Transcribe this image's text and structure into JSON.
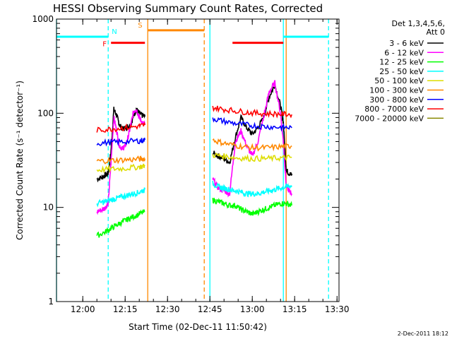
{
  "chart_data": {
    "type": "line",
    "title": "HESSI Observing Summary Count Rates, Corrected",
    "xlabel": "Start Time (02-Dec-11 11:50:42)",
    "ylabel": "Corrected Count Rate (s⁻¹ detector⁻¹)",
    "yscale": "log",
    "ylim": [
      1,
      1000
    ],
    "xlim": [
      "11:50:42",
      "13:30:42"
    ],
    "xticks": [
      "12:00",
      "12:15",
      "12:30",
      "12:45",
      "13:00",
      "13:15",
      "13:30"
    ],
    "yticks": [
      "1",
      "10",
      "100",
      "1000"
    ],
    "legend_header": [
      "Det 1,3,4,5,6,",
      "Att 0"
    ],
    "legend_position": "right",
    "timestamp": "2-Dec-2011 18:12",
    "series": [
      {
        "name": "3 - 6 keV",
        "color": "#000000",
        "segments": [
          {
            "t": [
              "12:05",
              "12:07",
              "12:08",
              "12:09",
              "12:10",
              "12:11",
              "12:12",
              "12:13",
              "12:14",
              "12:15",
              "12:16",
              "12:17",
              "12:18",
              "12:19",
              "12:20",
              "12:21",
              "12:22"
            ],
            "y": [
              20,
              21,
              22,
              23,
              40,
              110,
              95,
              75,
              68,
              70,
              72,
              75,
              95,
              110,
              100,
              95,
              92
            ]
          },
          {
            "t": [
              "12:46",
              "12:48",
              "12:50",
              "12:52",
              "12:54",
              "12:56",
              "12:58",
              "13:00",
              "13:02",
              "13:04",
              "13:06",
              "13:08",
              "13:10",
              "13:11",
              "13:12",
              "13:13",
              "13:14"
            ],
            "y": [
              38,
              35,
              33,
              30,
              55,
              90,
              70,
              60,
              70,
              90,
              150,
              200,
              120,
              80,
              25,
              23,
              22
            ]
          }
        ]
      },
      {
        "name": "6 - 12 keV",
        "color": "#ff00ff",
        "segments": [
          {
            "t": [
              "12:05",
              "12:07",
              "12:08",
              "12:09",
              "12:10",
              "12:11",
              "12:12",
              "12:13",
              "12:14",
              "12:15",
              "12:16",
              "12:17",
              "12:18",
              "12:19",
              "12:20",
              "12:21",
              "12:22"
            ],
            "y": [
              9,
              9.5,
              10,
              11,
              30,
              90,
              65,
              45,
              42,
              45,
              55,
              75,
              105,
              110,
              90,
              80,
              75
            ]
          },
          {
            "t": [
              "12:46",
              "12:48",
              "12:50",
              "12:52",
              "12:54",
              "12:56",
              "12:58",
              "13:00",
              "13:02",
              "13:04",
              "13:06",
              "13:08",
              "13:10",
              "13:11",
              "13:12",
              "13:13",
              "13:14"
            ],
            "y": [
              20,
              16,
              15,
              14,
              50,
              65,
              45,
              35,
              50,
              90,
              170,
              210,
              100,
              50,
              17,
              15,
              14
            ]
          }
        ]
      },
      {
        "name": "12 - 25 keV",
        "color": "#00ff00",
        "segments": [
          {
            "t": [
              "12:05",
              "12:08",
              "12:10",
              "12:12",
              "12:14",
              "12:16",
              "12:18",
              "12:20",
              "12:22"
            ],
            "y": [
              5,
              5.5,
              6,
              6.5,
              7,
              7.5,
              8,
              8.5,
              9
            ]
          },
          {
            "t": [
              "12:46",
              "12:48",
              "12:50",
              "12:52",
              "12:54",
              "12:56",
              "12:58",
              "13:00",
              "13:02",
              "13:04",
              "13:06",
              "13:08",
              "13:10",
              "13:12",
              "13:14"
            ],
            "y": [
              12,
              11.5,
              11,
              10.5,
              10.5,
              9.5,
              9,
              8.5,
              9,
              9.5,
              10,
              10.5,
              11,
              11,
              10.5
            ]
          }
        ]
      },
      {
        "name": "25 - 50 keV",
        "color": "#00ffff",
        "segments": [
          {
            "t": [
              "12:05",
              "12:08",
              "12:10",
              "12:12",
              "12:14",
              "12:16",
              "12:18",
              "12:20",
              "12:22"
            ],
            "y": [
              11,
              11.5,
              12,
              12.5,
              13,
              13.5,
              14,
              14.5,
              15.5
            ]
          },
          {
            "t": [
              "12:46",
              "12:48",
              "12:50",
              "12:52",
              "12:54",
              "12:56",
              "12:58",
              "13:00",
              "13:02",
              "13:04",
              "13:06",
              "13:08",
              "13:10",
              "13:12",
              "13:14"
            ],
            "y": [
              18,
              16.5,
              16,
              15.5,
              15,
              14.5,
              14,
              14,
              14,
              14.5,
              15,
              15.5,
              16,
              16.5,
              17
            ]
          }
        ]
      },
      {
        "name": "50 - 100 keV",
        "color": "#dddd00",
        "segments": [
          {
            "t": [
              "12:05",
              "12:10",
              "12:15",
              "12:20",
              "12:22"
            ],
            "y": [
              25,
              25.5,
              26,
              27,
              27.5
            ]
          },
          {
            "t": [
              "12:46",
              "12:50",
              "12:55",
              "13:00",
              "13:05",
              "13:10",
              "13:14"
            ],
            "y": [
              36,
              35,
              33.5,
              33,
              33,
              33.5,
              34
            ]
          }
        ]
      },
      {
        "name": "100 - 300 keV",
        "color": "#ff8800",
        "segments": [
          {
            "t": [
              "12:05",
              "12:10",
              "12:15",
              "12:20",
              "12:22"
            ],
            "y": [
              31,
              31.5,
              32,
              32.5,
              33
            ]
          },
          {
            "t": [
              "12:46",
              "12:50",
              "12:55",
              "13:00",
              "13:05",
              "13:10",
              "13:14"
            ],
            "y": [
              52,
              48,
              45,
              43,
              43,
              44,
              45
            ]
          }
        ]
      },
      {
        "name": "300 - 800 keV",
        "color": "#0000ff",
        "segments": [
          {
            "t": [
              "12:05",
              "12:10",
              "12:15",
              "12:20",
              "12:22"
            ],
            "y": [
              48,
              49,
              50,
              51,
              52
            ]
          },
          {
            "t": [
              "12:46",
              "12:50",
              "12:55",
              "13:00",
              "13:05",
              "13:10",
              "13:14"
            ],
            "y": [
              88,
              82,
              77,
              74,
              72,
              71,
              70
            ]
          }
        ]
      },
      {
        "name": "800 - 7000 keV",
        "color": "#ff0000",
        "segments": [
          {
            "t": [
              "12:05",
              "12:10",
              "12:15",
              "12:20",
              "12:22"
            ],
            "y": [
              66,
              68,
              70,
              73,
              75
            ]
          },
          {
            "t": [
              "12:46",
              "12:50",
              "12:55",
              "13:00",
              "13:05",
              "13:10",
              "13:14"
            ],
            "y": [
              115,
              110,
              105,
              101,
              99,
              98,
              97
            ]
          }
        ]
      },
      {
        "name": "7000 - 20000 keV",
        "color": "#888800",
        "segments": []
      }
    ],
    "flags": [
      {
        "label": "N",
        "color": "#00ffff",
        "y": 650,
        "intervals": [
          [
            "11:50:42",
            "12:09"
          ],
          [
            "13:11",
            "13:27"
          ]
        ]
      },
      {
        "label": "F",
        "color": "#ff0000",
        "y": 560,
        "intervals": [
          [
            "12:10",
            "12:22"
          ],
          [
            "12:53",
            "13:11"
          ]
        ]
      },
      {
        "label": "S",
        "color": "#ff8800",
        "y": 760,
        "intervals": [
          [
            "12:23",
            "12:43"
          ]
        ]
      }
    ],
    "vlines": [
      {
        "t": "11:50:42",
        "color": "#00ffff",
        "style": "solid"
      },
      {
        "t": "12:09",
        "color": "#00ffff",
        "style": "dashed"
      },
      {
        "t": "12:23",
        "color": "#ff8800",
        "style": "solid"
      },
      {
        "t": "12:43",
        "color": "#ff8800",
        "style": "dashed"
      },
      {
        "t": "12:45",
        "color": "#00ffff",
        "style": "solid"
      },
      {
        "t": "13:11",
        "color": "#00ffff",
        "style": "solid"
      },
      {
        "t": "13:12",
        "color": "#ff8800",
        "style": "solid"
      },
      {
        "t": "13:27",
        "color": "#00ffff",
        "style": "dashed"
      }
    ]
  }
}
